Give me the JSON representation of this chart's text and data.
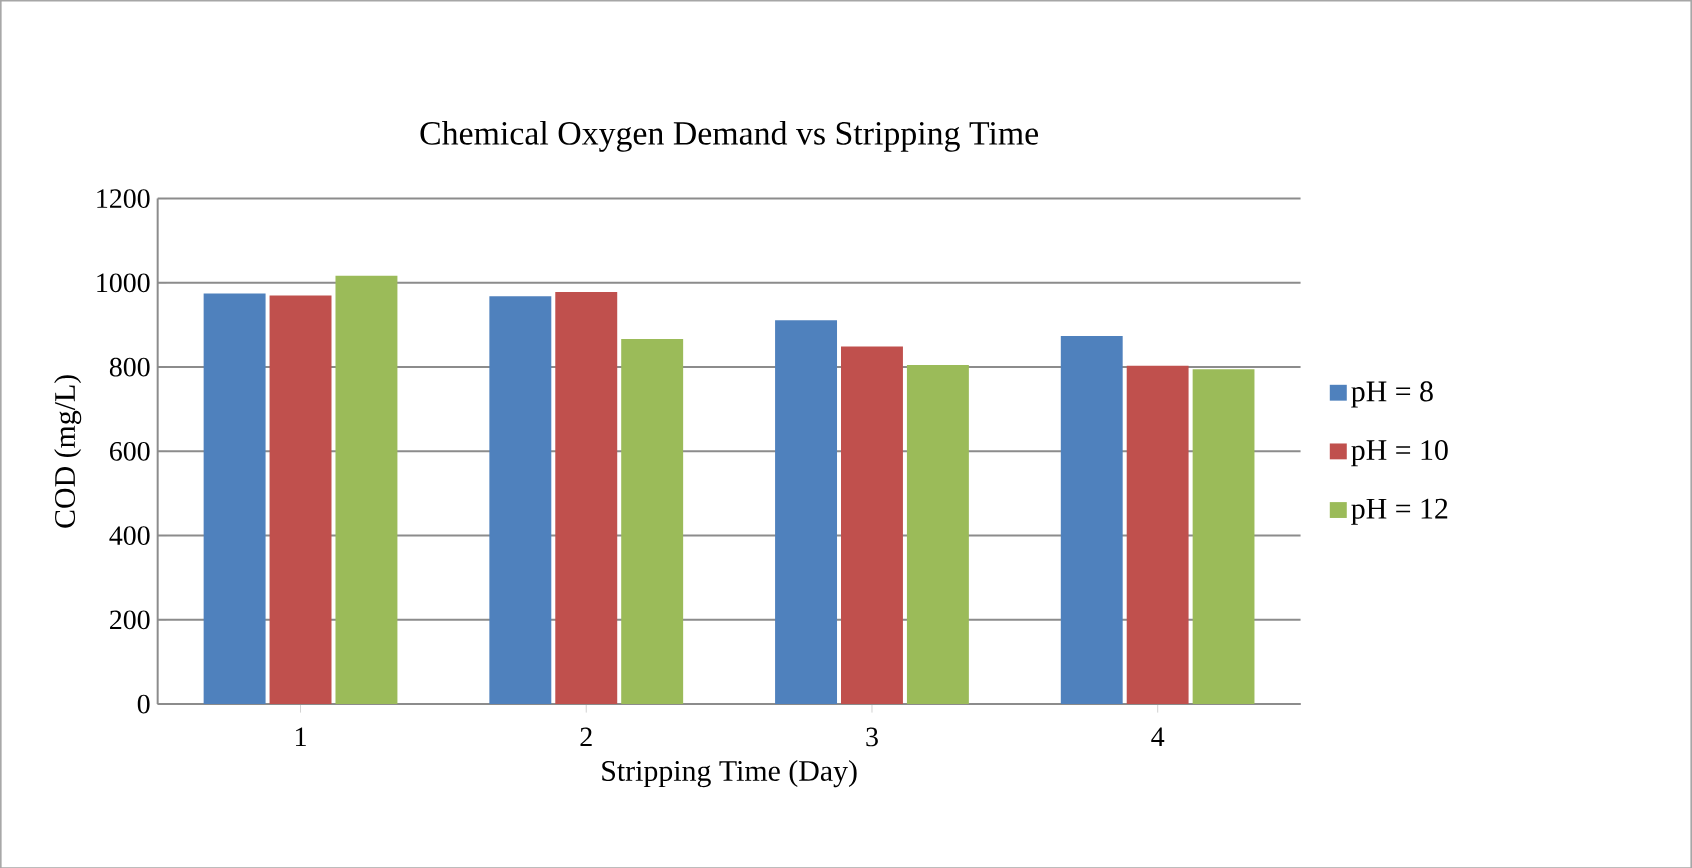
{
  "chart_data": {
    "type": "bar",
    "title": "Chemical Oxygen Demand vs Stripping Time",
    "xlabel": "Stripping Time (Day)",
    "ylabel": "COD (mg/L)",
    "categories": [
      "1",
      "2",
      "3",
      "4"
    ],
    "series": [
      {
        "name": "pH = 8",
        "color": "#4f81bd",
        "values": [
          975,
          968,
          911,
          874
        ]
      },
      {
        "name": "pH = 10",
        "color": "#c0504d",
        "values": [
          970,
          978,
          849,
          803
        ]
      },
      {
        "name": "pH = 12",
        "color": "#9bbb59",
        "values": [
          1017,
          867,
          805,
          795
        ]
      }
    ],
    "ylim": [
      0,
      1200
    ],
    "yticks": [
      0,
      200,
      400,
      600,
      800,
      1000,
      1200
    ],
    "grid": "y",
    "legend": "right"
  }
}
